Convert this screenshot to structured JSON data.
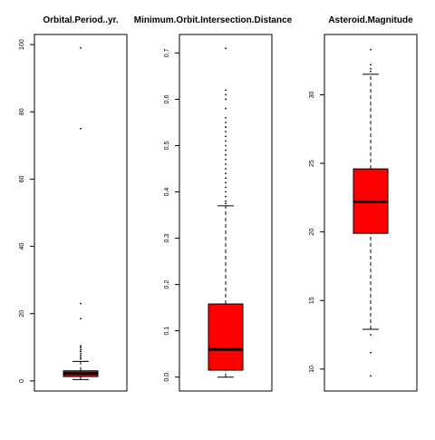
{
  "chart_data": [
    {
      "type": "boxplot",
      "title": "Orbital.Period..yr.",
      "ylim": [
        -3,
        103
      ],
      "yticks": [
        0,
        20,
        40,
        60,
        80,
        100
      ],
      "box": {
        "min": 0.4,
        "q1": 1.3,
        "median": 2.2,
        "q3": 3.0,
        "max": 5.8
      },
      "outliers": [
        6.5,
        7.0,
        7.6,
        8.2,
        8.8,
        9.3,
        9.9,
        10.4,
        18.5,
        23.0,
        75.0,
        99.0
      ],
      "box_color": "#ff0000",
      "xlabel": "",
      "ylabel": ""
    },
    {
      "type": "boxplot",
      "title": "Minimum.Orbit.Intersection.Distance",
      "ylim": [
        -0.03,
        0.74
      ],
      "yticks": [
        0.0,
        0.1,
        0.2,
        0.3,
        0.4,
        0.5,
        0.6,
        0.7
      ],
      "box": {
        "min": 0.0,
        "q1": 0.015,
        "median": 0.06,
        "q3": 0.158,
        "max": 0.37
      },
      "outliers": [
        0.375,
        0.38,
        0.39,
        0.4,
        0.41,
        0.42,
        0.43,
        0.44,
        0.45,
        0.46,
        0.47,
        0.48,
        0.49,
        0.5,
        0.51,
        0.52,
        0.53,
        0.54,
        0.55,
        0.56,
        0.58,
        0.6,
        0.61,
        0.62,
        0.71
      ],
      "box_color": "#ff0000",
      "xlabel": "",
      "ylabel": ""
    },
    {
      "type": "boxplot",
      "title": "Asteroid.Magnitude",
      "ylim": [
        8.4,
        34.4
      ],
      "yticks": [
        10,
        15,
        20,
        25,
        30
      ],
      "box": {
        "min": 12.9,
        "q1": 19.9,
        "median": 22.2,
        "q3": 24.6,
        "max": 31.5
      },
      "outliers": [
        9.5,
        11.2,
        12.5,
        31.7,
        31.9,
        32.2,
        33.3
      ],
      "box_color": "#ff0000",
      "xlabel": "",
      "ylabel": ""
    }
  ]
}
